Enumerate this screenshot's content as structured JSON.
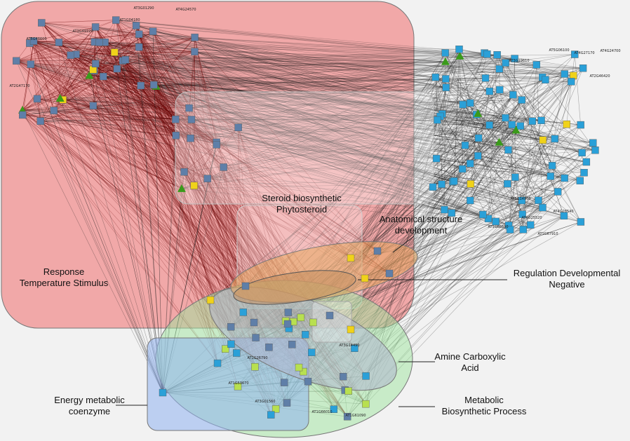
{
  "colors": {
    "background": "#f2f2f2",
    "response_region": "#f08a8a",
    "energy_region": "#8fb3f0",
    "metabolic_region": "#9ee39e",
    "amine_region": "#b0b6d0",
    "development_region": "#e8a860",
    "steroid_region": "#ffffff",
    "red_edges": "#6b0000",
    "dark_edges": "#1a1a1a",
    "node_blue": "#2aa0d8",
    "node_gray_blue": "#5f7fa8",
    "node_yellow": "#f0d21a",
    "node_lime": "#b8e050",
    "node_green_triangle": "#3a9a1a"
  },
  "clusters": {
    "response": {
      "line1": "Response",
      "line2": "Temperature Stimulus"
    },
    "steroid": {
      "line1": "Steroid biosynthetic",
      "line2": "Phytosteroid"
    },
    "anatomical": {
      "line1": "Anatomical structure",
      "line2": "development"
    },
    "regulation": {
      "line1": "Regulation Developmental",
      "line2": "Negative"
    },
    "amine": {
      "line1": "Amine Carboxylic",
      "line2": "Acid"
    },
    "energy": {
      "line1": "Energy metabolic",
      "line2": "coenzyme"
    },
    "metabolic": {
      "line1": "Metabolic",
      "line2": "Biosynthetic Process"
    }
  },
  "node_labels": {
    "n1": "AT3G01290",
    "n2": "AT4G24570",
    "n3": "AT2G47170",
    "n4": "AT3G49220",
    "n5": "AT5G48600",
    "n6": "AT1G26790",
    "n7": "AT1G53670",
    "n8": "AT5G06100",
    "n9": "AT3G19610",
    "n10": "AT4G27170",
    "n11": "AT1G04180",
    "n12": "AT3G14960",
    "n13": "AT1G68590",
    "n14": "AT3G01560",
    "n15": "AT1G66010",
    "n16": "AT3G14490",
    "n17": "AT1G67910",
    "n18": "AT4G25520",
    "n19": "AT4G28540",
    "n20": "AT2G46420",
    "n21": "AT1G61090",
    "n22": "AT4G24700"
  }
}
